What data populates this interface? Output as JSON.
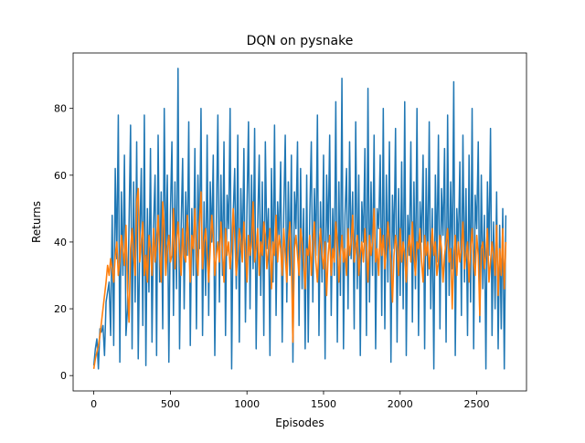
{
  "chart_data": {
    "type": "line",
    "title": "DQN on pysnake",
    "xlabel": "Episodes",
    "ylabel": "Returns",
    "xlim": [
      -135,
      2825
    ],
    "ylim": [
      -4.6,
      96.6
    ],
    "grid": false,
    "legend": "none",
    "xticks": [
      0,
      500,
      1000,
      1500,
      2000,
      2500
    ],
    "yticks": [
      0,
      20,
      40,
      60,
      80
    ],
    "x_range": [
      0,
      2690
    ],
    "series": [
      {
        "color": "#1f77b4",
        "sample_step": 10,
        "values": [
          3,
          8,
          11,
          2,
          14,
          13,
          15,
          6,
          22,
          25,
          28,
          12,
          48,
          9,
          62,
          35,
          78,
          4,
          55,
          30,
          66,
          12,
          20,
          45,
          75,
          8,
          58,
          22,
          70,
          5,
          40,
          62,
          15,
          78,
          3,
          50,
          25,
          68,
          10,
          45,
          60,
          6,
          72,
          28,
          55,
          14,
          80,
          33,
          60,
          4,
          48,
          70,
          18,
          58,
          26,
          92,
          8,
          44,
          65,
          20,
          55,
          36,
          76,
          9,
          50,
          30,
          68,
          14,
          60,
          38,
          80,
          12,
          52,
          24,
          72,
          18,
          58,
          40,
          66,
          6,
          46,
          78,
          22,
          60,
          30,
          70,
          12,
          54,
          44,
          80,
          2,
          48,
          62,
          26,
          72,
          10,
          56,
          36,
          68,
          16,
          50,
          76,
          20,
          60,
          32,
          74,
          8,
          45,
          66,
          24,
          58,
          12,
          70,
          38,
          50,
          6,
          62,
          28,
          75,
          18,
          52,
          40,
          64,
          10,
          48,
          72,
          22,
          58,
          30,
          66,
          4,
          55,
          44,
          70,
          15,
          62,
          26,
          50,
          8,
          60,
          10,
          48,
          70,
          22,
          56,
          36,
          78,
          12,
          52,
          28,
          66,
          5,
          60,
          40,
          72,
          18,
          50,
          30,
          82,
          10,
          58,
          24,
          89,
          8,
          48,
          62,
          20,
          70,
          35,
          55,
          14,
          76,
          26,
          60,
          6,
          52,
          40,
          68,
          12,
          86,
          22,
          58,
          30,
          72,
          8,
          50,
          44,
          66,
          18,
          80,
          14,
          60,
          28,
          70,
          4,
          54,
          38,
          74,
          10,
          56,
          24,
          64,
          20,
          82,
          6,
          48,
          36,
          70,
          16,
          58,
          26,
          80,
          12,
          52,
          40,
          66,
          8,
          62,
          30,
          76,
          20,
          50,
          2,
          60,
          34,
          72,
          14,
          56,
          42,
          68,
          10,
          78,
          24,
          58,
          32,
          88,
          6,
          50,
          38,
          64,
          18,
          72,
          28,
          56,
          12,
          66,
          22,
          80,
          8,
          54,
          44,
          70,
          16,
          60,
          26,
          48,
          2,
          58,
          36,
          74,
          12,
          46,
          20,
          55,
          8,
          45,
          14,
          50,
          2,
          48
        ]
      },
      {
        "color": "#ff7f0e",
        "sample_step": 10,
        "values": [
          2,
          5,
          7,
          9,
          12,
          16,
          20,
          24,
          28,
          33,
          30,
          35,
          32,
          28,
          36,
          40,
          30,
          34,
          42,
          38,
          33,
          45,
          26,
          16,
          38,
          44,
          36,
          30,
          52,
          56,
          34,
          40,
          46,
          30,
          36,
          28,
          42,
          38,
          30,
          44,
          34,
          40,
          48,
          36,
          28,
          52,
          44,
          30,
          38,
          42,
          34,
          36,
          50,
          32,
          40,
          46,
          38,
          30,
          44,
          36,
          34,
          48,
          40,
          28,
          42,
          38,
          50,
          36,
          30,
          46,
          55,
          32,
          40,
          44,
          36,
          28,
          38,
          48,
          42,
          30,
          36,
          40,
          34,
          46,
          38,
          28,
          44,
          36,
          40,
          32,
          38,
          50,
          42,
          30,
          36,
          44,
          40,
          34,
          46,
          38,
          28,
          42,
          36,
          40,
          52,
          34,
          38,
          44,
          30,
          40,
          36,
          46,
          42,
          32,
          38,
          44,
          26,
          40,
          36,
          48,
          34,
          42,
          38,
          30,
          44,
          36,
          28,
          40,
          46,
          34,
          10,
          38,
          42,
          36,
          30,
          44,
          40,
          34,
          26,
          38,
          36,
          42,
          30,
          40,
          46,
          34,
          28,
          38,
          44,
          36,
          32,
          40,
          24,
          36,
          42,
          30,
          38,
          34,
          46,
          40,
          28,
          36,
          42,
          34,
          38,
          30,
          44,
          36,
          40,
          48,
          34,
          38,
          42,
          30,
          36,
          40,
          34,
          44,
          38,
          28,
          42,
          36,
          40,
          50,
          34,
          38,
          30,
          44,
          36,
          42,
          32,
          38,
          46,
          40,
          34,
          22,
          36,
          42,
          38,
          30,
          44,
          34,
          40,
          36,
          28,
          38,
          42,
          34,
          46,
          36,
          30,
          40,
          38,
          44,
          34,
          28,
          42,
          36,
          40,
          32,
          38,
          44,
          36,
          40,
          30,
          34,
          42,
          38,
          28,
          36,
          40,
          44,
          34,
          38,
          20,
          36,
          42,
          30,
          40,
          34,
          38,
          46,
          32,
          36,
          40,
          28,
          38,
          44,
          34,
          30,
          42,
          36,
          18,
          38,
          40,
          32,
          36,
          44,
          28,
          34,
          40,
          36,
          30,
          45,
          24,
          38,
          30,
          44,
          26,
          40
        ]
      }
    ]
  }
}
